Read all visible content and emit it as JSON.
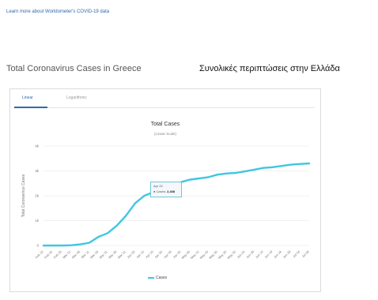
{
  "top_link": "Learn more about Worldometer's COVID-19 data",
  "headings": {
    "title_en": "Total Coronavirus Cases in Greece",
    "title_el": "Συνολικές περιπτώσεις στην Ελλάδα"
  },
  "tabs": [
    {
      "label": "Linear",
      "active": true
    },
    {
      "label": "Logarithmic",
      "active": false
    }
  ],
  "tooltip": {
    "date": "Apr 22",
    "series": "Cases",
    "value": "2,408"
  },
  "colors": {
    "line": "#3ec7e0",
    "accent": "#2f6aa8",
    "grid": "#e6e6e6"
  },
  "chart_data": {
    "type": "line",
    "title": "Total Cases",
    "subtitle": "(Linear Scale)",
    "ylabel": "Total Coronavirus Cases",
    "ylim": [
      0,
      4000
    ],
    "yticks": [
      "0",
      "1k",
      "2k",
      "3k",
      "4k"
    ],
    "categories": [
      "Feb 15",
      "Feb 20",
      "Feb 25",
      "Mar 01",
      "Mar 06",
      "Mar 11",
      "Mar 16",
      "Mar 21",
      "Mar 26",
      "Mar 31",
      "Apr 05",
      "Apr 10",
      "Apr 15",
      "Apr 20",
      "Apr 25",
      "Apr 30",
      "May 05",
      "May 10",
      "May 15",
      "May 20",
      "May 25",
      "May 30",
      "Jun 04",
      "Jun 09",
      "Jun 14",
      "Jun 19",
      "Jun 24",
      "Jun 29",
      "Jul 04",
      "Jul 09"
    ],
    "series": [
      {
        "name": "Cases",
        "values": [
          0,
          0,
          0,
          10,
          45,
          110,
          350,
          500,
          800,
          1200,
          1700,
          2000,
          2150,
          2250,
          2300,
          2550,
          2650,
          2700,
          2750,
          2850,
          2900,
          2920,
          2980,
          3050,
          3120,
          3150,
          3200,
          3250,
          3280,
          3300
        ]
      }
    ],
    "legend": "bottom-center",
    "grid": true
  }
}
